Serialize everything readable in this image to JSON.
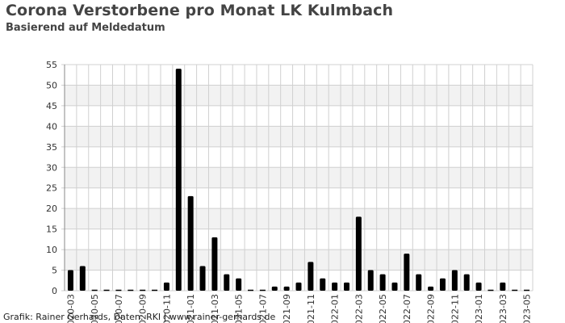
{
  "title": "Corona Verstorbene pro Monat LK Kulmbach",
  "subtitle": "Basierend auf Meldedatum",
  "credit": "Grafik: Rainer Gerhards, Daten: RKI | www.rainer-gerhards.de",
  "colors": {
    "bar": "#000000",
    "band": "#f2f2f2",
    "grid": "#d0d0d0",
    "axis": "#888888"
  },
  "chart_data": {
    "type": "bar",
    "title": "Corona Verstorbene pro Monat LK Kulmbach",
    "subtitle": "Basierend auf Meldedatum",
    "xlabel": "",
    "ylabel": "",
    "ylim": [
      0,
      55
    ],
    "yticks": [
      0,
      5,
      10,
      15,
      20,
      25,
      30,
      35,
      40,
      45,
      50,
      55
    ],
    "grid": true,
    "legend": "none",
    "categories": [
      "2020-03",
      "2020-04",
      "2020-05",
      "2020-06",
      "2020-07",
      "2020-08",
      "2020-09",
      "2020-10",
      "2020-11",
      "2020-12",
      "2021-01",
      "2021-02",
      "2021-03",
      "2021-04",
      "2021-05",
      "2021-06",
      "2021-07",
      "2021-08",
      "2021-09",
      "2021-10",
      "2021-11",
      "2021-12",
      "2022-01",
      "2022-02",
      "2022-03",
      "2022-04",
      "2022-05",
      "2022-06",
      "2022-07",
      "2022-08",
      "2022-09",
      "2022-10",
      "2022-11",
      "2022-12",
      "2023-01",
      "2023-02",
      "2023-03",
      "2023-04",
      "2023-05"
    ],
    "tick_labels": [
      "2020-03",
      "2020-05",
      "2020-07",
      "2020-09",
      "2020-11",
      "2021-01",
      "2021-03",
      "2021-05",
      "2021-07",
      "2021-09",
      "2021-11",
      "2022-01",
      "2022-03",
      "2022-05",
      "2022-07",
      "2022-09",
      "2022-11",
      "2023-01",
      "2023-03",
      "2023-05"
    ],
    "values": [
      5,
      6,
      0,
      0,
      0,
      0,
      0,
      0,
      2,
      54,
      23,
      6,
      13,
      4,
      3,
      0,
      0,
      1,
      1,
      2,
      7,
      3,
      2,
      2,
      18,
      5,
      4,
      2,
      9,
      4,
      1,
      3,
      5,
      4,
      2,
      0,
      2,
      0,
      0
    ]
  }
}
